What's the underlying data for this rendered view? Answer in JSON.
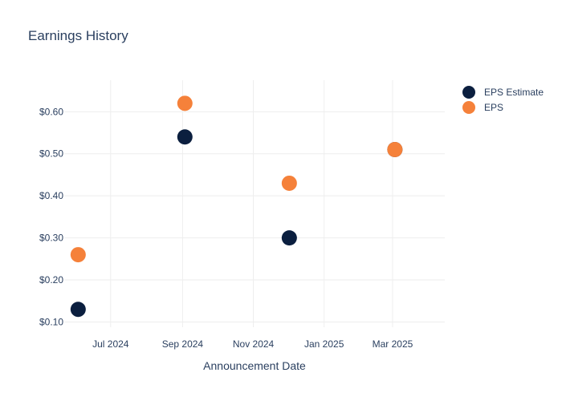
{
  "chart_data": {
    "type": "scatter",
    "title": "Earnings History",
    "xlabel": "Announcement Date",
    "ylabel": "",
    "x_ticks": [
      {
        "date": "2024-07-01",
        "label": "Jul 2024"
      },
      {
        "date": "2024-09-01",
        "label": "Sep 2024"
      },
      {
        "date": "2024-11-01",
        "label": "Nov 2024"
      },
      {
        "date": "2025-01-01",
        "label": "Jan 2025"
      },
      {
        "date": "2025-03-01",
        "label": "Mar 2025"
      }
    ],
    "xlim": [
      "2024-05-22",
      "2025-04-15"
    ],
    "y_ticks": [
      {
        "value": 0.1,
        "label": "$0.10"
      },
      {
        "value": 0.2,
        "label": "$0.20"
      },
      {
        "value": 0.3,
        "label": "$0.30"
      },
      {
        "value": 0.4,
        "label": "$0.40"
      },
      {
        "value": 0.5,
        "label": "$0.50"
      },
      {
        "value": 0.6,
        "label": "$0.60"
      }
    ],
    "ylim": [
      0.0875,
      0.675
    ],
    "grid": true,
    "legend_position": "top-right",
    "series": [
      {
        "name": "EPS Estimate",
        "color": "#0b1f3f",
        "points": [
          {
            "x": "2024-06-03",
            "y": 0.13
          },
          {
            "x": "2024-09-03",
            "y": 0.54
          },
          {
            "x": "2024-12-02",
            "y": 0.3
          },
          {
            "x": "2025-03-03",
            "y": 0.51
          }
        ]
      },
      {
        "name": "EPS",
        "color": "#f5813a",
        "points": [
          {
            "x": "2024-06-03",
            "y": 0.26
          },
          {
            "x": "2024-09-03",
            "y": 0.62
          },
          {
            "x": "2024-12-02",
            "y": 0.43
          },
          {
            "x": "2025-03-03",
            "y": 0.51
          }
        ]
      }
    ]
  }
}
